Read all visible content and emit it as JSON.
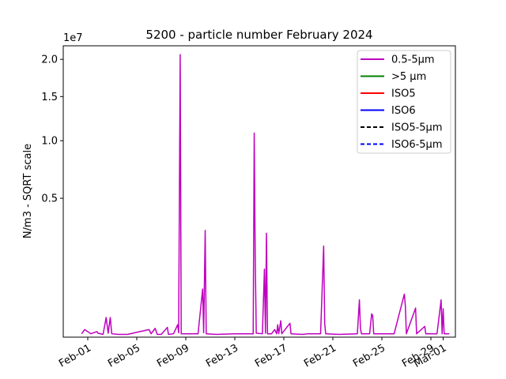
{
  "chart_data": {
    "type": "line",
    "title": "5200 - particle number February 2024",
    "ylabel": "N/m3 - SQRT scale",
    "xlabel": "",
    "yscale": "sqrt",
    "offset_text": "1e7",
    "grid": false,
    "legend_placement": "top-right",
    "xlim": [
      "2024-01-30",
      "2024-03-02"
    ],
    "ylim": [
      0,
      22000000
    ],
    "x_ticks": [
      {
        "date": "2024-02-01",
        "label": "Feb-01"
      },
      {
        "date": "2024-02-05",
        "label": "Feb-05"
      },
      {
        "date": "2024-02-09",
        "label": "Feb-09"
      },
      {
        "date": "2024-02-13",
        "label": "Feb-13"
      },
      {
        "date": "2024-02-17",
        "label": "Feb-17"
      },
      {
        "date": "2024-02-21",
        "label": "Feb-21"
      },
      {
        "date": "2024-02-25",
        "label": "Feb-25"
      },
      {
        "date": "2024-02-29",
        "label": "Feb-29"
      },
      {
        "date": "2024-03-01",
        "label": "Mar-01"
      }
    ],
    "y_ticks": [
      {
        "value": 5000000,
        "label": "0.5"
      },
      {
        "value": 10000000,
        "label": "1.0"
      },
      {
        "value": 15000000,
        "label": "1.5"
      },
      {
        "value": 20000000,
        "label": "2.0"
      }
    ],
    "series": [
      {
        "name": "0.5-5µm",
        "color": "#bf00bf",
        "style": "solid",
        "points": [
          [
            "2024-01-31T12:00",
            3000
          ],
          [
            "2024-01-31T18:00",
            15000
          ],
          [
            "2024-02-01T06:00",
            3000
          ],
          [
            "2024-02-01T18:00",
            8000
          ],
          [
            "2024-02-01T20:00",
            4000
          ],
          [
            "2024-02-02T06:00",
            2000
          ],
          [
            "2024-02-02T12:00",
            100000
          ],
          [
            "2024-02-02T16:00",
            4000
          ],
          [
            "2024-02-02T20:00",
            100000
          ],
          [
            "2024-02-02T23:00",
            3000
          ],
          [
            "2024-02-03T12:00",
            2000
          ],
          [
            "2024-02-04T06:00",
            2000
          ],
          [
            "2024-02-06T00:00",
            15000
          ],
          [
            "2024-02-06T04:00",
            3000
          ],
          [
            "2024-02-06T12:00",
            20000
          ],
          [
            "2024-02-06T16:00",
            2000
          ],
          [
            "2024-02-07T00:00",
            2000
          ],
          [
            "2024-02-07T12:00",
            25000
          ],
          [
            "2024-02-07T14:00",
            2000
          ],
          [
            "2024-02-08T00:00",
            3000
          ],
          [
            "2024-02-08T08:00",
            40000
          ],
          [
            "2024-02-08T10:00",
            5000
          ],
          [
            "2024-02-08T13:00",
            20700000
          ],
          [
            "2024-02-08T15:00",
            3000
          ],
          [
            "2024-02-09T00:00",
            3000
          ],
          [
            "2024-02-10T00:00",
            3000
          ],
          [
            "2024-02-10T09:00",
            600000
          ],
          [
            "2024-02-10T11:00",
            5000
          ],
          [
            "2024-02-10T14:00",
            2950000
          ],
          [
            "2024-02-10T16:00",
            3000
          ],
          [
            "2024-02-11T12:00",
            2000
          ],
          [
            "2024-02-13T00:00",
            3000
          ],
          [
            "2024-02-14T12:00",
            3000
          ],
          [
            "2024-02-14T14:00",
            10800000
          ],
          [
            "2024-02-14T16:00",
            1600000
          ],
          [
            "2024-02-14T18:00",
            4000
          ],
          [
            "2024-02-15T06:00",
            3000
          ],
          [
            "2024-02-15T10:00",
            1200000
          ],
          [
            "2024-02-15T12:00",
            4000
          ],
          [
            "2024-02-15T14:00",
            2800000
          ],
          [
            "2024-02-15T16:00",
            3000
          ],
          [
            "2024-02-16T00:00",
            3000
          ],
          [
            "2024-02-16T06:00",
            15000
          ],
          [
            "2024-02-16T10:00",
            3000
          ],
          [
            "2024-02-16T12:00",
            40000
          ],
          [
            "2024-02-16T14:00",
            3000
          ],
          [
            "2024-02-16T18:00",
            70000
          ],
          [
            "2024-02-16T20:00",
            3000
          ],
          [
            "2024-02-17T12:00",
            50000
          ],
          [
            "2024-02-17T14:00",
            3000
          ],
          [
            "2024-02-18T12:00",
            2000
          ],
          [
            "2024-02-19T00:00",
            3000
          ],
          [
            "2024-02-20T00:00",
            3000
          ],
          [
            "2024-02-20T06:00",
            2150000
          ],
          [
            "2024-02-20T08:00",
            50000
          ],
          [
            "2024-02-20T10:00",
            3000
          ],
          [
            "2024-02-21T12:00",
            2000
          ],
          [
            "2024-02-23T00:00",
            3000
          ],
          [
            "2024-02-23T04:00",
            360000
          ],
          [
            "2024-02-23T06:00",
            20000
          ],
          [
            "2024-02-23T08:00",
            3000
          ],
          [
            "2024-02-24T00:00",
            3000
          ],
          [
            "2024-02-24T04:00",
            140000
          ],
          [
            "2024-02-24T06:00",
            120000
          ],
          [
            "2024-02-24T08:00",
            3000
          ],
          [
            "2024-02-26T00:00",
            3000
          ],
          [
            "2024-02-26T20:00",
            480000
          ],
          [
            "2024-02-26T22:00",
            250000
          ],
          [
            "2024-02-27T00:00",
            3000
          ],
          [
            "2024-02-27T18:00",
            220000
          ],
          [
            "2024-02-27T20:00",
            3000
          ],
          [
            "2024-02-28T12:00",
            30000
          ],
          [
            "2024-02-28T14:00",
            3000
          ],
          [
            "2024-02-29T12:00",
            3000
          ],
          [
            "2024-02-29T20:00",
            360000
          ],
          [
            "2024-02-29T22:00",
            3000
          ],
          [
            "2024-03-01T00:00",
            210000
          ],
          [
            "2024-03-01T02:00",
            3000
          ],
          [
            "2024-03-01T12:00",
            3000
          ]
        ]
      },
      {
        "name": ">5 µm",
        "color": "#008000",
        "style": "solid",
        "points": []
      },
      {
        "name": "ISO5",
        "color": "#ff0000",
        "style": "solid",
        "points": []
      },
      {
        "name": "ISO6",
        "color": "#0000ff",
        "style": "solid",
        "points": []
      },
      {
        "name": "ISO5-5µm",
        "color": "#000000",
        "style": "dashed",
        "points": []
      },
      {
        "name": "ISO6-5µm",
        "color": "#0000ff",
        "style": "dashed",
        "points": []
      }
    ],
    "partial_xlabel": "                    "
  }
}
